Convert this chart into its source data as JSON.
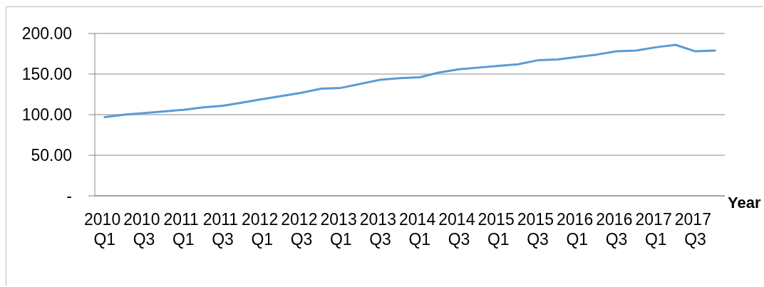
{
  "chart_data": {
    "type": "line",
    "xlabel": "Year",
    "categories": [
      "2010 Q1",
      null,
      "2010 Q3",
      null,
      "2011 Q1",
      null,
      "2011 Q3",
      null,
      "2012 Q1",
      null,
      "2012 Q3",
      null,
      "2013 Q1",
      null,
      "2013 Q3",
      null,
      "2014 Q1",
      null,
      "2014 Q3",
      null,
      "2015 Q1",
      null,
      "2015 Q3",
      null,
      "2016 Q1",
      null,
      "2016 Q3",
      null,
      "2017 Q1",
      null,
      "2017 Q3",
      null
    ],
    "values": [
      97,
      100,
      102,
      104,
      106,
      109,
      111,
      115,
      119,
      123,
      127,
      132,
      133,
      138,
      143,
      145,
      146,
      152,
      156,
      158,
      160,
      162,
      167,
      168,
      171,
      174,
      178,
      179,
      183,
      186,
      178,
      179
    ],
    "color": "#5b9bd5",
    "ylim": [
      0,
      200
    ],
    "yticks": [
      {
        "value": 0,
        "label": "-"
      },
      {
        "value": 50,
        "label": "50.00"
      },
      {
        "value": 100,
        "label": "100.00"
      },
      {
        "value": 150,
        "label": "150.00"
      },
      {
        "value": 200,
        "label": "200.00"
      }
    ],
    "grid": "y",
    "marker": "none",
    "line_style": "solid"
  }
}
